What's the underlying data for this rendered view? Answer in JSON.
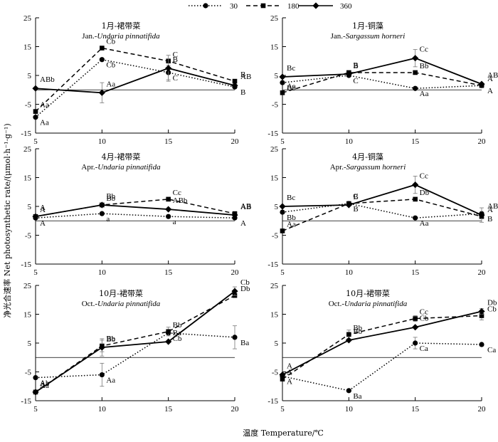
{
  "figure": {
    "ylabel": "净光合速率 Net photosynthetic rate/(μmol·h⁻¹·g⁻¹)",
    "xlabel": "温度 Temperature/℃"
  },
  "legend": {
    "items": [
      {
        "label": "30",
        "style": "dotted",
        "marker": "circle"
      },
      {
        "label": "180",
        "style": "dashed",
        "marker": "square"
      },
      {
        "label": "360",
        "style": "solid",
        "marker": "diamond"
      }
    ]
  },
  "chart_data": [
    {
      "type": "line",
      "title": "1月-裙带菜",
      "subtitle_prefix": "Jan.-",
      "subtitle_species": "Undaria pinnatifida",
      "x": [
        5,
        10,
        15,
        20
      ],
      "ylim": [
        -15,
        25
      ],
      "yticks": [
        -15,
        -5,
        5,
        15,
        25
      ],
      "series": [
        {
          "name": "30",
          "values": [
            -9.5,
            10.5,
            6.0,
            1.0
          ],
          "errors": [
            0,
            0,
            2.5,
            0
          ],
          "labels": [
            "Aa",
            "Cb",
            "C",
            "B"
          ]
        },
        {
          "name": "180",
          "values": [
            -7.5,
            14.5,
            10.0,
            3.0
          ],
          "errors": [
            0,
            0,
            0,
            0
          ],
          "labels": [
            "Aa",
            "Cb",
            "C",
            "B"
          ]
        },
        {
          "name": "360",
          "values": [
            0.5,
            -1.0,
            7.5,
            1.5
          ],
          "errors": [
            0,
            3.5,
            4.5,
            0
          ],
          "labels": [
            "ABb",
            "Aa",
            "B",
            "AB"
          ]
        }
      ]
    },
    {
      "type": "line",
      "title": "1月-铜藻",
      "subtitle_prefix": "Jan.-",
      "subtitle_species": "Sargassum horneri",
      "x": [
        5,
        10,
        15,
        20
      ],
      "ylim": [
        -15,
        25
      ],
      "yticks": [
        -15,
        -5,
        5,
        15,
        25
      ],
      "series": [
        {
          "name": "30",
          "values": [
            2.5,
            5.0,
            0.5,
            1.5
          ],
          "errors": [
            0,
            0,
            0,
            0
          ],
          "labels": [
            "Bb",
            "C",
            "Aa",
            "A"
          ]
        },
        {
          "name": "180",
          "values": [
            -1.0,
            6.0,
            6.0,
            1.5
          ],
          "errors": [
            0,
            0,
            0,
            0
          ],
          "labels": [
            "Aa",
            "B",
            "Bb",
            "A"
          ]
        },
        {
          "name": "360",
          "values": [
            4.5,
            5.5,
            11.0,
            2.0
          ],
          "errors": [
            0,
            0,
            3.0,
            0
          ],
          "labels": [
            "Bc",
            "B",
            "Cc",
            "AB"
          ]
        }
      ]
    },
    {
      "type": "line",
      "title": "4月-裙带菜",
      "subtitle_prefix": "Apr.-",
      "subtitle_species": "Undaria pinnatifida",
      "x": [
        5,
        10,
        15,
        20
      ],
      "ylim": [
        -15,
        25
      ],
      "yticks": [
        -15,
        -5,
        5,
        15,
        25
      ],
      "series": [
        {
          "name": "30",
          "values": [
            1.0,
            2.5,
            1.5,
            1.0
          ],
          "errors": [
            0,
            0,
            0,
            0
          ],
          "labels": [
            "A",
            "a",
            "a",
            "A"
          ]
        },
        {
          "name": "180",
          "values": [
            1.5,
            5.5,
            7.5,
            2.5
          ],
          "errors": [
            0,
            0,
            0,
            0
          ],
          "labels": [
            "A",
            "Bb",
            "Cc",
            "AB"
          ]
        },
        {
          "name": "360",
          "values": [
            1.5,
            5.5,
            4.0,
            2.0
          ],
          "errors": [
            0,
            0,
            0,
            0
          ],
          "labels": [
            "A",
            "Bb",
            "ABb",
            "AB"
          ]
        }
      ]
    },
    {
      "type": "line",
      "title": "4月-铜藻",
      "subtitle_prefix": "Apr.-",
      "subtitle_species": "Sargassum horneri",
      "x": [
        5,
        10,
        15,
        20
      ],
      "ylim": [
        -15,
        25
      ],
      "yticks": [
        -15,
        -5,
        5,
        15,
        25
      ],
      "series": [
        {
          "name": "30",
          "values": [
            3.0,
            6.0,
            1.0,
            2.5
          ],
          "errors": [
            0,
            0,
            0,
            0
          ],
          "labels": [
            "Bb",
            "B",
            "Aa",
            "B"
          ]
        },
        {
          "name": "180",
          "values": [
            -3.5,
            6.0,
            7.5,
            1.5
          ],
          "errors": [
            0,
            0,
            0,
            0
          ],
          "labels": [
            "Aa",
            "B",
            "Db",
            "A"
          ]
        },
        {
          "name": "360",
          "values": [
            5.0,
            5.5,
            12.5,
            2.0
          ],
          "errors": [
            0,
            0,
            3.0,
            2.5
          ],
          "labels": [
            "Bc",
            "C",
            "Cc",
            "AB"
          ]
        }
      ]
    },
    {
      "type": "line",
      "title": "10月-裙带菜",
      "subtitle_prefix": "Oct.-",
      "subtitle_species": "Undaria pinnatifida",
      "x": [
        5,
        10,
        15,
        20
      ],
      "ylim": [
        -15,
        25
      ],
      "yticks": [
        -15,
        -5,
        5,
        15,
        25
      ],
      "series": [
        {
          "name": "30",
          "values": [
            -7.0,
            -6.0,
            8.5,
            7.0
          ],
          "errors": [
            0,
            4.0,
            0,
            4.0
          ],
          "labels": [
            "Ab",
            "Aa",
            "Cb",
            "Ba"
          ]
        },
        {
          "name": "180",
          "values": [
            -12.0,
            4.0,
            9.0,
            21.5
          ],
          "errors": [
            0,
            2.0,
            1.5,
            0
          ],
          "labels": [
            "Aa",
            "Bb",
            "Bb",
            "Db"
          ]
        },
        {
          "name": "360",
          "values": [
            -12.0,
            3.5,
            5.5,
            23.0
          ],
          "errors": [
            0,
            3.0,
            0,
            1.5
          ],
          "labels": [
            "Aa",
            "Bb",
            "Ba",
            "Cb"
          ]
        }
      ]
    },
    {
      "type": "line",
      "title": "10月-裙带菜",
      "subtitle_prefix": "Oct.-",
      "subtitle_species": "Undaria pinnatifida",
      "x": [
        5,
        10,
        15,
        20
      ],
      "ylim": [
        -15,
        25
      ],
      "yticks": [
        -15,
        -5,
        5,
        15,
        25
      ],
      "series": [
        {
          "name": "30",
          "values": [
            -6.5,
            -11.5,
            5.0,
            4.5
          ],
          "errors": [
            0,
            0,
            2.0,
            0
          ],
          "labels": [
            "A",
            "Ba",
            "Ca",
            "Ca"
          ]
        },
        {
          "name": "180",
          "values": [
            -7.5,
            8.0,
            13.5,
            14.5
          ],
          "errors": [
            0,
            1.5,
            1.0,
            1.5
          ],
          "labels": [
            "A",
            "Bb",
            "Cc",
            "Cb"
          ]
        },
        {
          "name": "360",
          "values": [
            -6.0,
            6.0,
            10.5,
            16.0
          ],
          "errors": [
            0,
            0,
            0,
            1.0
          ],
          "labels": [
            "A",
            "Bb",
            "Cb",
            "Db"
          ]
        }
      ]
    }
  ]
}
